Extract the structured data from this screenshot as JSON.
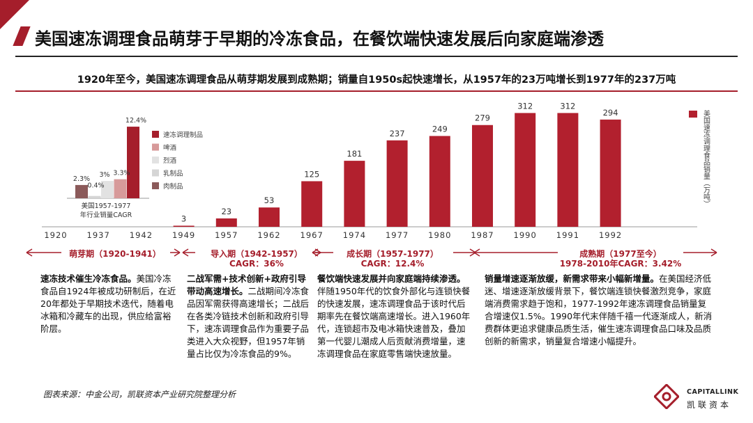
{
  "page": {
    "title": "美国速冻调理食品萌芽于早期的冷冻食品，在餐饮端快速发展后向家庭端渗透",
    "subtitle": "1920年至今，美国速冻调理食品从萌芽期发展到成熟期；销量自1950s起快速增长，从1957年的23万吨增长到1977年的237万吨",
    "source": "图表来源：中金公司，凯联资本产业研究院整理分析",
    "logo_en": "CAPITALLINK",
    "logo_cn": "凯联资本",
    "accent_color": "#a51e2b"
  },
  "chart_data": [
    {
      "type": "bar",
      "title": "",
      "categories": [
        "1920",
        "1937",
        "1942",
        "1949",
        "1957",
        "1962",
        "1967",
        "1974",
        "1977",
        "1980",
        "1987",
        "1990",
        "1991",
        "1992"
      ],
      "series": [
        {
          "name": "美国速冻调理食品销量（万吨）",
          "values": [
            null,
            null,
            null,
            3,
            23,
            53,
            125,
            181,
            237,
            249,
            279,
            312,
            312,
            294
          ],
          "color": "#b2202e"
        }
      ],
      "data_labels": [
        "",
        "",
        "",
        "3",
        "23",
        "53",
        "125",
        "181",
        "237",
        "249",
        "279",
        "312",
        "312",
        "294"
      ],
      "legend": "right",
      "ylim": [
        0,
        330
      ],
      "grid": false
    },
    {
      "type": "bar",
      "title": "",
      "xlabel": "美国1957-1977年行业销量CAGR",
      "categories": [
        "肉制品",
        "乳制品",
        "烈酒",
        "啤酒",
        "速冻调理制品"
      ],
      "values": [
        2.3,
        0.4,
        3,
        3.3,
        12.4
      ],
      "value_labels": [
        "2.3%",
        "0.4%",
        "3%",
        "3.3%",
        "12.4%"
      ],
      "colors": [
        "#8b5a5a",
        "#d5d5d5",
        "#e2e2e2",
        "#d79a9a",
        "#a51e2b"
      ],
      "legend": "right",
      "legend_order": [
        "速冻调理制品",
        "啤酒",
        "烈酒",
        "乳制品",
        "肉制品"
      ]
    }
  ],
  "phases": [
    {
      "label": "萌芽期（1920-1941）",
      "cagr": ""
    },
    {
      "label": "导入期（1942-1957）",
      "cagr": "CAGR：36%"
    },
    {
      "label": "成长期（1957-1977）",
      "cagr": "CAGR：12.4%"
    },
    {
      "label": "成熟期（1977至今）",
      "cagr": "1978-2010年CAGR：3.42%"
    }
  ],
  "columns": [
    {
      "heading": "速冻技术催生冷冻食品。",
      "body": "美国冷冻食品自1924年被成功研制后，在近20年都处于早期技术迭代，随着电冰箱和冷藏车的出现，供应给富裕阶层。"
    },
    {
      "heading": "二战军需+技术创新+政府引导带动高速增长。",
      "body": "二战期间冷冻食品因军需获得高速增长；二战后在各类冷链技术创新和政府引导下，速冻调理食品作为重要子品类进入大众视野，但1957年销量占比仅为冷冻食品的9%。"
    },
    {
      "heading": "餐饮端快速发展并向家庭端持续渗透。",
      "body": "伴随1950年代的饮食外部化与连锁快餐的快速发展，速冻调理食品于该时代后期率先在餐饮端高速增长。进入1960年代，连锁超市及电冰箱快速普及，叠加第一代婴儿潮成人后贡献消费增量，速冻调理食品在家庭零售端快速放量。"
    },
    {
      "heading": "销量增速逐渐放缓，新需求带来小幅新增量。",
      "body": "在美国经济低迷、增速逐渐放缓背景下，餐饮端连锁快餐激烈竞争，家庭端消费需求趋于饱和，1977-1992年速冻调理食品销量复合增速仅1.5%。1990年代末伴随千禧一代逐渐成人，新消费群体更追求健康品质生活，催生速冻调理食品口味及品质创新的新需求，销量复合增速小幅提升。"
    }
  ]
}
